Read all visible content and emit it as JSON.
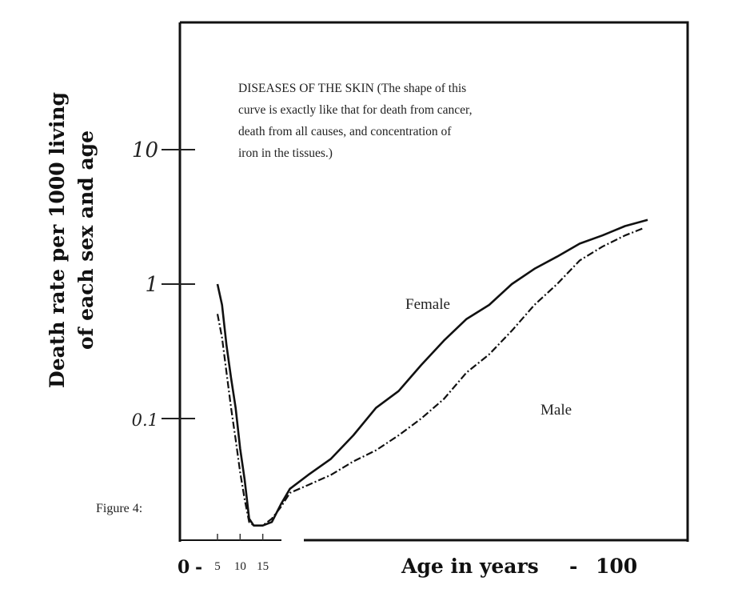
{
  "caption": "Figure 4:",
  "chart_data": {
    "type": "line",
    "annotation": [
      "DISEASES OF THE SKIN  (The shape of this",
      "curve is exactly like that for death from cancer,",
      "death from all causes, and concentration of",
      "iron in the tissues.)"
    ],
    "ylabel": [
      "Death rate per 1000 living",
      "of each sex and age"
    ],
    "xlabel_parts": {
      "zero": "0",
      "dash_left": "-",
      "axis_text": "Age in years",
      "dash_right": "-",
      "max": "100"
    },
    "yscale": "log",
    "ylim": [
      0.015,
      100
    ],
    "xlim": [
      0,
      100
    ],
    "yticks": [
      {
        "value": 10,
        "label": "10"
      },
      {
        "value": 1,
        "label": "1"
      },
      {
        "value": 0.1,
        "label": "0.1"
      }
    ],
    "xticks": [
      {
        "value": 5,
        "label": "5"
      },
      {
        "value": 10,
        "label": "10"
      },
      {
        "value": 15,
        "label": "15"
      }
    ],
    "grid": false,
    "series": [
      {
        "name": "Female",
        "style": "solid",
        "x": [
          5,
          6,
          7,
          8,
          9,
          10,
          11,
          12,
          13,
          15,
          17,
          19,
          21,
          25,
          30,
          35,
          40,
          45,
          50,
          55,
          60,
          65,
          70,
          75,
          80,
          85,
          90,
          95,
          100
        ],
        "y": [
          1.0,
          0.7,
          0.35,
          0.2,
          0.12,
          0.06,
          0.035,
          0.018,
          0.016,
          0.016,
          0.017,
          0.023,
          0.03,
          0.038,
          0.05,
          0.075,
          0.12,
          0.16,
          0.25,
          0.38,
          0.55,
          0.7,
          1.0,
          1.3,
          1.6,
          2.0,
          2.3,
          2.7,
          3.0
        ]
      },
      {
        "name": "Male",
        "style": "dashed",
        "x": [
          5,
          6,
          7,
          8,
          9,
          10,
          11,
          12,
          13,
          15,
          17,
          19,
          21,
          25,
          30,
          35,
          40,
          45,
          50,
          55,
          60,
          65,
          70,
          75,
          80,
          85,
          90,
          95,
          99
        ],
        "y": [
          0.6,
          0.4,
          0.22,
          0.12,
          0.07,
          0.04,
          0.025,
          0.017,
          0.016,
          0.016,
          0.018,
          0.022,
          0.028,
          0.032,
          0.038,
          0.048,
          0.058,
          0.075,
          0.1,
          0.14,
          0.22,
          0.3,
          0.45,
          0.7,
          1.0,
          1.5,
          1.9,
          2.3,
          2.6
        ]
      }
    ]
  }
}
